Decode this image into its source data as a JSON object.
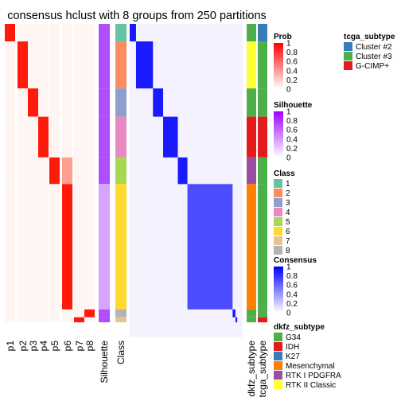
{
  "chart_data": {
    "type": "heatmap",
    "title": "consensus hclust with 8 groups from 250 partitions",
    "columns": [
      "p1",
      "p2",
      "p3",
      "p4",
      "p5",
      "p6",
      "p7",
      "p8",
      "Silhouette",
      "Class",
      "dkfz_subtype",
      "tcga_subtype"
    ],
    "class_rows": [
      {
        "class": 1,
        "fraction": 0.056,
        "dkfz": "G34",
        "tcga": "Cluster #2"
      },
      {
        "class": 2,
        "fraction": 0.15,
        "dkfz": "RTK II Classic",
        "tcga": "Cluster #3"
      },
      {
        "class": 3,
        "fraction": 0.09,
        "dkfz": "G34",
        "tcga": "Cluster #3"
      },
      {
        "class": 4,
        "fraction": 0.13,
        "dkfz": "IDH",
        "tcga": "G-CIMP+"
      },
      {
        "class": 5,
        "fraction": 0.085,
        "dkfz": "RTK I PDGFRA",
        "tcga": "Cluster #3"
      },
      {
        "class": 6,
        "fraction": 0.4,
        "dkfz": "Mesenchymal",
        "tcga": "Cluster #3"
      },
      {
        "class": 8,
        "fraction": 0.025,
        "dkfz": "G34",
        "tcga": "Cluster #3"
      },
      {
        "class": 7,
        "fraction": 0.016,
        "dkfz": "G34",
        "tcga": "G-CIMP+"
      }
    ],
    "legends": {
      "prob": {
        "title": "Prob",
        "range": [
          0,
          1
        ],
        "ticks": [
          "1",
          "0.8",
          "0.6",
          "0.4",
          "0.2",
          "0"
        ],
        "low_color": "#ffffff",
        "high_color": "#ff0000"
      },
      "silhouette": {
        "title": "Silhouette",
        "range": [
          0,
          1
        ],
        "ticks": [
          "1",
          "0.8",
          "0.6",
          "0.4",
          "0.2",
          "0"
        ],
        "low_color": "#ffffff",
        "high_color": "#9e00ff"
      },
      "class": {
        "title": "Class",
        "items": [
          {
            "label": "1",
            "color": "#66c2a5"
          },
          {
            "label": "2",
            "color": "#fc8d62"
          },
          {
            "label": "3",
            "color": "#8da0cb"
          },
          {
            "label": "4",
            "color": "#e78ac3"
          },
          {
            "label": "5",
            "color": "#a6d854"
          },
          {
            "label": "6",
            "color": "#ffd92f"
          },
          {
            "label": "7",
            "color": "#e5c494"
          },
          {
            "label": "8",
            "color": "#b3b3b3"
          }
        ]
      },
      "consensus": {
        "title": "Consensus",
        "range": [
          0,
          1
        ],
        "ticks": [
          "1",
          "0.8",
          "0.6",
          "0.4",
          "0.2",
          "0"
        ],
        "low_color": "#ffffff",
        "high_color": "#0000ff"
      },
      "dkfz_subtype": {
        "title": "dkfz_subtype",
        "items": [
          {
            "label": "G34",
            "color": "#4daf4a"
          },
          {
            "label": "IDH",
            "color": "#e41a1c"
          },
          {
            "label": "K27",
            "color": "#377eb8"
          },
          {
            "label": "Mesenchymal",
            "color": "#ff7f00"
          },
          {
            "label": "RTK I PDGFRA",
            "color": "#984ea3"
          },
          {
            "label": "RTK II Classic",
            "color": "#ffff33"
          }
        ]
      },
      "tcga_subtype": {
        "title": "tcga_subtype",
        "items": [
          {
            "label": "Cluster #2",
            "color": "#377eb8"
          },
          {
            "label": "Cluster #3",
            "color": "#4daf4a"
          },
          {
            "label": "G-CIMP+",
            "color": "#e41a1c"
          }
        ]
      }
    }
  }
}
